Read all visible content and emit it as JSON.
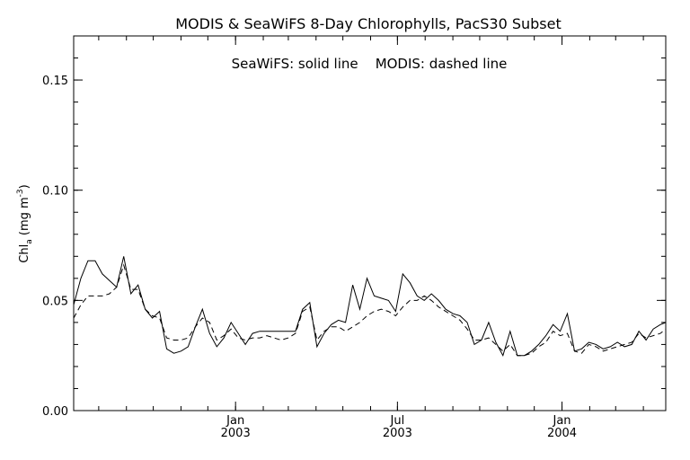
{
  "chart_data": {
    "type": "line",
    "title": "MODIS & SeaWiFS 8-Day Chlorophylls, PacS30 Subset",
    "legend_text": "SeaWiFS: solid line    MODIS: dashed line",
    "ylabel": {
      "main": "Chl",
      "sub": "a",
      "units_open": " (mg m",
      "units_sup": "-3",
      "units_close": ")"
    },
    "ylim": [
      0.0,
      0.17
    ],
    "y_ticks": [
      "0.00",
      "0.05",
      "0.10",
      "0.15"
    ],
    "xlim": [
      "2002-07-04",
      "2004-04-26"
    ],
    "x_ticks": [
      {
        "date": "2003-01-01",
        "label_top": "Jan",
        "label_bottom": "2003"
      },
      {
        "date": "2003-07-01",
        "label_top": "Jul",
        "label_bottom": "2003"
      },
      {
        "date": "2004-01-01",
        "label_top": "Jan",
        "label_bottom": "2004"
      }
    ],
    "grid": false,
    "legend_position": "top-center",
    "series": [
      {
        "name": "SeaWiFS",
        "style": "solid",
        "x": [
          "2002-07-04",
          "2002-07-12",
          "2002-07-20",
          "2002-07-28",
          "2002-08-05",
          "2002-08-13",
          "2002-08-21",
          "2002-08-29",
          "2002-09-06",
          "2002-09-14",
          "2002-09-22",
          "2002-09-30",
          "2002-10-08",
          "2002-10-16",
          "2002-10-24",
          "2002-11-01",
          "2002-11-09",
          "2002-11-17",
          "2002-11-25",
          "2002-12-03",
          "2002-12-11",
          "2002-12-19",
          "2002-12-27",
          "2003-01-04",
          "2003-01-12",
          "2003-01-20",
          "2003-01-28",
          "2003-02-05",
          "2003-02-13",
          "2003-02-21",
          "2003-03-01",
          "2003-03-09",
          "2003-03-17",
          "2003-03-25",
          "2003-04-02",
          "2003-04-10",
          "2003-04-18",
          "2003-04-26",
          "2003-05-04",
          "2003-05-12",
          "2003-05-20",
          "2003-05-28",
          "2003-06-05",
          "2003-06-13",
          "2003-06-21",
          "2003-06-29",
          "2003-07-07",
          "2003-07-15",
          "2003-07-23",
          "2003-07-31",
          "2003-08-08",
          "2003-08-16",
          "2003-08-24",
          "2003-09-01",
          "2003-09-09",
          "2003-09-17",
          "2003-09-25",
          "2003-10-03",
          "2003-10-11",
          "2003-10-19",
          "2003-10-27",
          "2003-11-04",
          "2003-11-12",
          "2003-11-20",
          "2003-11-28",
          "2003-12-06",
          "2003-12-14",
          "2003-12-22",
          "2003-12-30",
          "2004-01-07",
          "2004-01-15",
          "2004-01-23",
          "2004-01-31",
          "2004-02-08",
          "2004-02-16",
          "2004-02-24",
          "2004-03-03",
          "2004-03-11",
          "2004-03-19",
          "2004-03-27",
          "2004-04-04",
          "2004-04-12",
          "2004-04-20",
          "2004-04-26"
        ],
        "values": [
          0.048,
          0.06,
          0.068,
          0.068,
          0.062,
          0.059,
          0.056,
          0.07,
          0.053,
          0.057,
          0.046,
          0.042,
          0.045,
          0.028,
          0.026,
          0.027,
          0.029,
          0.038,
          0.046,
          0.035,
          0.029,
          0.033,
          0.04,
          0.035,
          0.03,
          0.035,
          0.036,
          0.036,
          0.036,
          0.036,
          0.036,
          0.036,
          0.046,
          0.049,
          0.029,
          0.035,
          0.039,
          0.041,
          0.04,
          0.057,
          0.046,
          0.06,
          0.052,
          0.051,
          0.05,
          0.045,
          0.062,
          0.058,
          0.052,
          0.05,
          0.053,
          0.05,
          0.046,
          0.044,
          0.043,
          0.04,
          0.03,
          0.032,
          0.04,
          0.031,
          0.025,
          0.036,
          0.025,
          0.025,
          0.027,
          0.03,
          0.034,
          0.039,
          0.036,
          0.044,
          0.027,
          0.028,
          0.031,
          0.03,
          0.028,
          0.029,
          0.031,
          0.029,
          0.03,
          0.036,
          0.032,
          0.037,
          0.039,
          0.04
        ]
      },
      {
        "name": "MODIS",
        "style": "dashed",
        "x": [
          "2002-07-04",
          "2002-07-12",
          "2002-07-20",
          "2002-07-28",
          "2002-08-05",
          "2002-08-13",
          "2002-08-21",
          "2002-08-29",
          "2002-09-06",
          "2002-09-14",
          "2002-09-22",
          "2002-09-30",
          "2002-10-08",
          "2002-10-16",
          "2002-10-24",
          "2002-11-01",
          "2002-11-09",
          "2002-11-17",
          "2002-11-25",
          "2002-12-03",
          "2002-12-11",
          "2002-12-19",
          "2002-12-27",
          "2003-01-04",
          "2003-01-12",
          "2003-01-20",
          "2003-01-28",
          "2003-02-05",
          "2003-02-13",
          "2003-02-21",
          "2003-03-01",
          "2003-03-09",
          "2003-03-17",
          "2003-03-25",
          "2003-04-02",
          "2003-04-10",
          "2003-04-18",
          "2003-04-26",
          "2003-05-04",
          "2003-05-12",
          "2003-05-20",
          "2003-05-28",
          "2003-06-05",
          "2003-06-13",
          "2003-06-21",
          "2003-06-29",
          "2003-07-07",
          "2003-07-15",
          "2003-07-23",
          "2003-07-31",
          "2003-08-08",
          "2003-08-16",
          "2003-08-24",
          "2003-09-01",
          "2003-09-09",
          "2003-09-17",
          "2003-09-25",
          "2003-10-03",
          "2003-10-11",
          "2003-10-19",
          "2003-10-27",
          "2003-11-04",
          "2003-11-12",
          "2003-11-20",
          "2003-11-28",
          "2003-12-06",
          "2003-12-14",
          "2003-12-22",
          "2003-12-30",
          "2004-01-07",
          "2004-01-15",
          "2004-01-23",
          "2004-01-31",
          "2004-02-08",
          "2004-02-16",
          "2004-02-24",
          "2004-03-03",
          "2004-03-11",
          "2004-03-19",
          "2004-03-27",
          "2004-04-04",
          "2004-04-12",
          "2004-04-20",
          "2004-04-26"
        ],
        "values": [
          0.042,
          0.048,
          0.052,
          0.052,
          0.052,
          0.053,
          0.056,
          0.066,
          0.055,
          0.055,
          0.046,
          0.043,
          0.042,
          0.033,
          0.032,
          0.032,
          0.033,
          0.038,
          0.042,
          0.04,
          0.032,
          0.034,
          0.037,
          0.033,
          0.032,
          0.033,
          0.033,
          0.034,
          0.033,
          0.032,
          0.033,
          0.035,
          0.045,
          0.047,
          0.032,
          0.036,
          0.038,
          0.038,
          0.036,
          0.038,
          0.04,
          0.043,
          0.045,
          0.046,
          0.045,
          0.043,
          0.047,
          0.05,
          0.05,
          0.052,
          0.05,
          0.047,
          0.045,
          0.043,
          0.041,
          0.037,
          0.032,
          0.032,
          0.033,
          0.03,
          0.027,
          0.03,
          0.025,
          0.025,
          0.026,
          0.029,
          0.031,
          0.036,
          0.034,
          0.035,
          0.027,
          0.026,
          0.03,
          0.029,
          0.027,
          0.028,
          0.029,
          0.03,
          0.031,
          0.035,
          0.033,
          0.034,
          0.035,
          0.037
        ]
      }
    ]
  }
}
